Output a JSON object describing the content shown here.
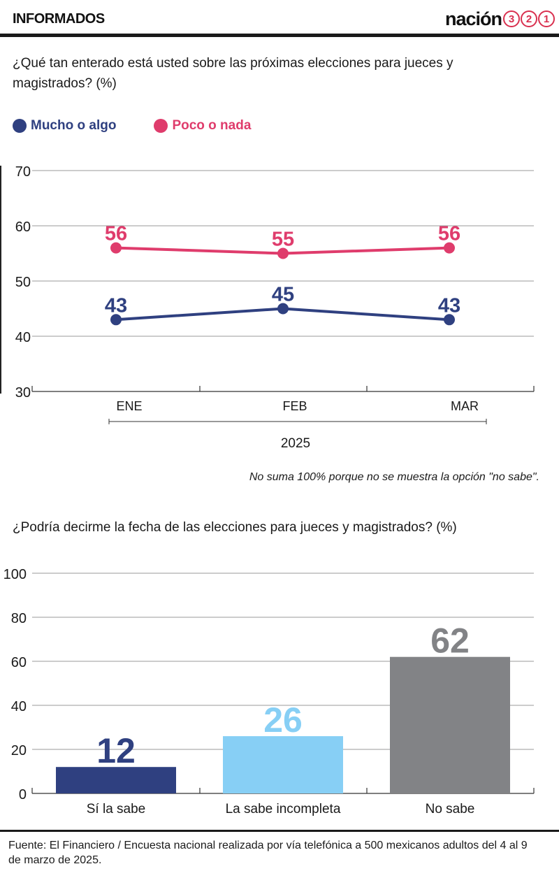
{
  "header": {
    "section_label": "INFORMADOS",
    "brand_word": "nación",
    "brand_digits": [
      "3",
      "2",
      "1"
    ]
  },
  "colors": {
    "navy": "#2f4080",
    "pink": "#df3c6c",
    "light_blue": "#87cff5",
    "gray": "#828386"
  },
  "chart1": {
    "question": "¿Qué tan enterado está usted sobre las próximas  elecciones para jueces y magistrados? (%)",
    "note": "No suma 100% porque no se muestra la opción \"no sabe\".",
    "legend": [
      {
        "label": "Mucho o algo",
        "color": "#2f4080"
      },
      {
        "label": "Poco o nada",
        "color": "#df3c6c"
      }
    ]
  },
  "chart2": {
    "question": "¿Podría decirme la fecha de las elecciones para jueces  y magistrados? (%)"
  },
  "chart_data": [
    {
      "type": "line",
      "title": "¿Qué tan enterado está usted sobre las próximas  elecciones para jueces y magistrados? (%)",
      "categories": [
        "ENE",
        "FEB",
        "MAR"
      ],
      "xlabel": "2025",
      "ylabel": "",
      "ylim": [
        30,
        70
      ],
      "yticks": [
        30,
        40,
        50,
        60,
        70
      ],
      "grid": true,
      "legend_position": "top-left",
      "series": [
        {
          "name": "Mucho o algo",
          "color": "#2f4080",
          "values": [
            43,
            45,
            43
          ]
        },
        {
          "name": "Poco o nada",
          "color": "#df3c6c",
          "values": [
            56,
            55,
            56
          ]
        }
      ]
    },
    {
      "type": "bar",
      "title": "¿Podría decirme la fecha de las elecciones para jueces  y magistrados? (%)",
      "categories": [
        "Sí la sabe",
        "La sabe incompleta",
        "No sabe"
      ],
      "values": [
        12,
        26,
        62
      ],
      "colors": [
        "#2f4080",
        "#87cff5",
        "#828386"
      ],
      "xlabel": "",
      "ylabel": "",
      "ylim": [
        0,
        100
      ],
      "yticks": [
        0,
        20,
        40,
        60,
        80,
        100
      ],
      "grid": true
    }
  ],
  "footer": {
    "source": "Fuente: El Financiero / Encuesta nacional realizada por vía telefónica a 500 mexicanos adultos del 4 al 9 de marzo de 2025."
  }
}
